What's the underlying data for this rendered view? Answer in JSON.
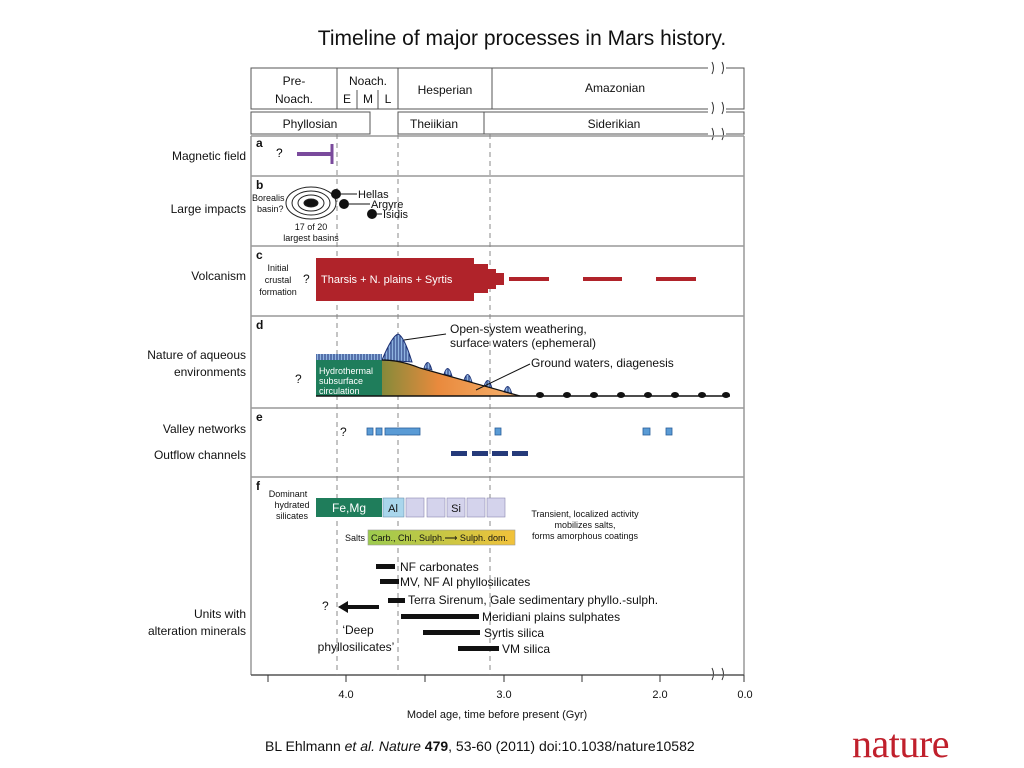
{
  "title": "Timeline of major processes in Mars history.",
  "eras": {
    "row1": [
      "Pre-",
      "Noach.",
      "Noach.",
      "E",
      "M",
      "L",
      "Hesperian",
      "Amazonian"
    ],
    "row2": [
      "Phyllosian",
      "Theiikian",
      "Siderikian"
    ]
  },
  "panels": {
    "a": {
      "letter": "a",
      "label": "Magnetic field",
      "mark": "?"
    },
    "b": {
      "letter": "b",
      "label": "Large impacts",
      "basin": [
        "Borealis",
        "basin?"
      ],
      "basins_note": [
        "17 of 20",
        "largest basins"
      ],
      "impacts": [
        "Hellas",
        "Argyre",
        "Isidis"
      ]
    },
    "c": {
      "letter": "c",
      "label": "Volcanism",
      "initial": [
        "Initial",
        "crustal",
        "formation"
      ],
      "mark": "?",
      "bar_text": "Tharsis + N. plains + Syrtis"
    },
    "d": {
      "letter": "d",
      "label": [
        "Nature of aqueous",
        "environments"
      ],
      "mark": "?",
      "hydro": [
        "Hydrothermal",
        "subsurface",
        "circulation"
      ],
      "open": [
        "Open-system weathering,",
        "surface waters (ephemeral)"
      ],
      "ground": "Ground waters, diagenesis"
    },
    "e": {
      "letter": "e",
      "label1": "Valley networks",
      "label2": "Outflow channels",
      "mark": "?"
    },
    "f": {
      "letter": "f",
      "dominant": [
        "Dominant",
        "hydrated",
        "silicates"
      ],
      "femg": "Fe,Mg",
      "al": "Al",
      "si": "Si",
      "transient": [
        "Transient, localized activity",
        "mobilizes salts,",
        "forms amorphous coatings"
      ],
      "salts_label": "Salts",
      "salts_bar": "Carb., Chl., Sulph.⟶ Sulph. dom.",
      "units_label": [
        "Units with",
        "alteration minerals"
      ],
      "mark": "?",
      "units": [
        "NF carbonates",
        "MV, NF Al phyllosilicates",
        "Terra Sirenum, Gale sedimentary phyllo.-sulph.",
        "Meridiani plains sulphates",
        "Syrtis silica",
        "VM silica"
      ],
      "deep": [
        "‘Deep",
        "phyllosilicates’"
      ]
    }
  },
  "axis": {
    "ticks": [
      "4.0",
      "3.0",
      "2.0",
      "0.0"
    ],
    "label": "Model age, time before present (Gyr)"
  },
  "citation": {
    "author": "BL Ehlmann ",
    "etal": "et al. Nature",
    "vol": "479",
    "rest": ", 53-60 (2011) doi:10.1038/nature10582"
  },
  "logo": "nature",
  "colors": {
    "magnetic": "#7a4a9c",
    "volcanism": "#b0232a",
    "hydrothermal": "#1f7d5b",
    "open_system": "#7fa7d8",
    "valley": "#5a9bd5",
    "outflow": "#253a7a",
    "femg": "#1f7d5b",
    "al": "#a9d6ec",
    "clay_box": "#d4d3ec",
    "salts_start": "#9ccb4e",
    "salts_end": "#f2c23a",
    "logo": "#c0202c"
  }
}
